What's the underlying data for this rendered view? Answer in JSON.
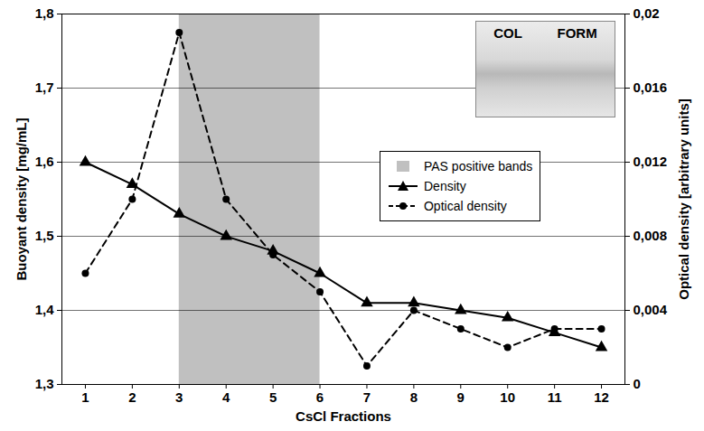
{
  "chart_data": {
    "type": "line",
    "xlabel": "CsCl Fractions",
    "ylabel": "Buoyant density [mg/mL]",
    "y2label": "Optical density [arbitrary units]",
    "x": [
      1,
      2,
      3,
      4,
      5,
      6,
      7,
      8,
      9,
      10,
      11,
      12
    ],
    "xlim": [
      0.5,
      12.5
    ],
    "xticks": [
      1,
      2,
      3,
      4,
      5,
      6,
      7,
      8,
      9,
      10,
      11,
      12
    ],
    "ylim": [
      1.3,
      1.8
    ],
    "yticks": [
      {
        "value": 1.3,
        "label": "1,3"
      },
      {
        "value": 1.4,
        "label": "1,4"
      },
      {
        "value": 1.5,
        "label": "1,5"
      },
      {
        "value": 1.6,
        "label": "1,6"
      },
      {
        "value": 1.7,
        "label": "1,7"
      },
      {
        "value": 1.8,
        "label": "1,8"
      }
    ],
    "y2lim": [
      0,
      0.02
    ],
    "y2ticks": [
      0,
      {
        "value": 0.004,
        "label": "0,004"
      },
      {
        "value": 0.008,
        "label": "0,008"
      },
      {
        "value": 0.012,
        "label": "0,012"
      },
      {
        "value": 0.016,
        "label": "0,016"
      },
      {
        "value": 0.02,
        "label": "0,02"
      }
    ],
    "grid": true,
    "legend": "right",
    "bands": [
      {
        "name": "PAS positive bands",
        "x": [
          3,
          6
        ],
        "color": "#c0c0c0"
      }
    ],
    "series": [
      {
        "name": "Density",
        "color": "#000000",
        "marker": "triangle",
        "line_style": "solid",
        "values": [
          1.6,
          1.57,
          1.53,
          1.5,
          1.48,
          1.45,
          1.41,
          1.41,
          1.4,
          1.39,
          1.37,
          1.35
        ]
      },
      {
        "name": "Optical density",
        "color": "#000000",
        "marker": "circle",
        "line_style": "dashed",
        "axis": "y2",
        "values": [
          0.006,
          0.01,
          0.019,
          0.01,
          0.007,
          0.005,
          0.001,
          0.004,
          0.003,
          0.002,
          0.003,
          0.003
        ]
      }
    ],
    "inset_labels": [
      "COL",
      "FORM"
    ]
  }
}
